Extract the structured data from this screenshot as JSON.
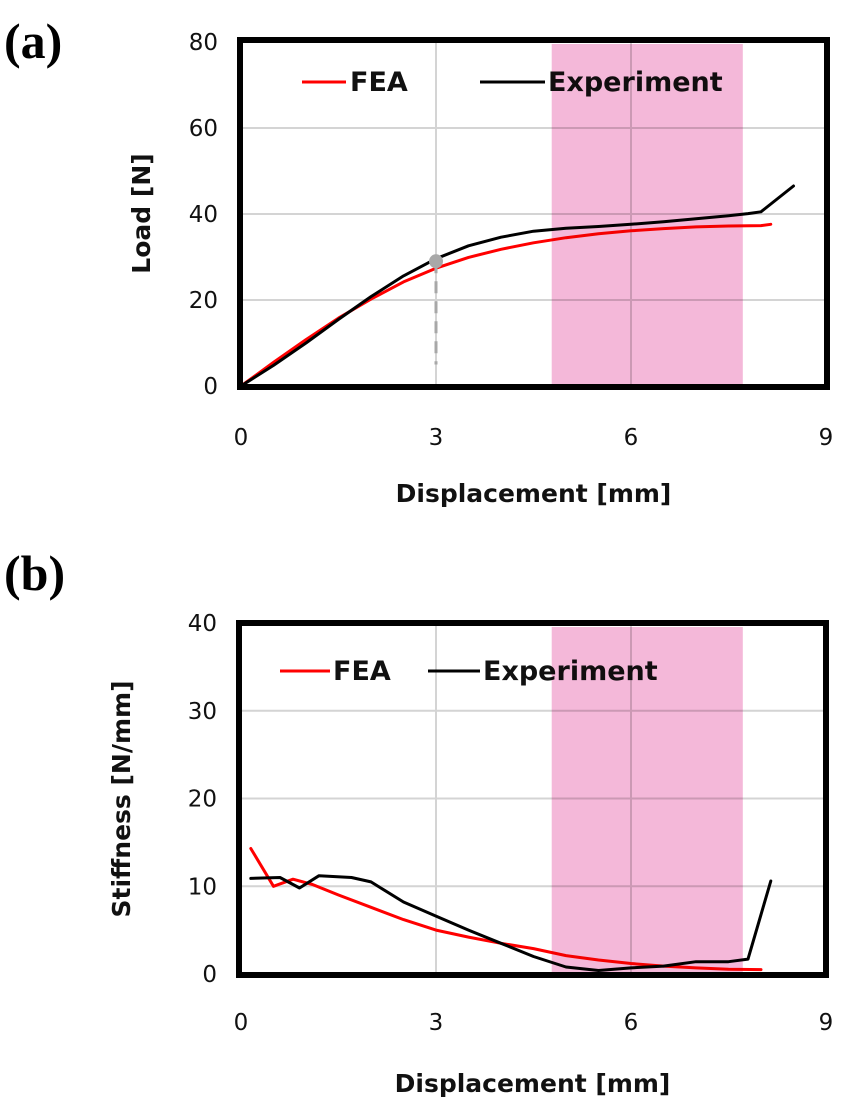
{
  "figure": {
    "colors": {
      "fea": "#ff0000",
      "experiment": "#000000",
      "highlight": "#f0a0cc",
      "grid": "#d4d4d4",
      "marker": "#a8a8a8"
    }
  },
  "chart_data": [
    {
      "panel_label": "(a)",
      "type": "line",
      "title": "",
      "xlabel": "Displacement [mm]",
      "ylabel": "Load [N]",
      "xlim": [
        0,
        9
      ],
      "ylim": [
        0,
        80
      ],
      "xticks": [
        "0",
        "3",
        "6",
        "9"
      ],
      "yticks": [
        "0",
        "20",
        "40",
        "60",
        "80"
      ],
      "xtick_values": [
        0,
        3,
        6,
        9
      ],
      "ytick_values": [
        0,
        20,
        40,
        60,
        80
      ],
      "grid": true,
      "legend": {
        "position": "top",
        "entries": [
          "FEA",
          "Experiment"
        ]
      },
      "highlight_band": {
        "x_start": 4.78,
        "x_end": 7.72
      },
      "annotation": {
        "type": "marker-with-dashed-drop",
        "x": 3.0,
        "y": 29,
        "drop_to_y": 5
      },
      "series": [
        {
          "name": "FEA",
          "x": [
            0,
            0.5,
            1.0,
            1.5,
            2.0,
            2.5,
            3.0,
            3.5,
            4.0,
            4.5,
            5.0,
            5.5,
            6.0,
            6.5,
            7.0,
            7.5,
            8.0,
            8.15
          ],
          "y": [
            0,
            5.5,
            10.8,
            15.8,
            20.2,
            24.2,
            27.4,
            29.9,
            31.8,
            33.3,
            34.5,
            35.4,
            36.1,
            36.6,
            37.0,
            37.2,
            37.3,
            37.6
          ]
        },
        {
          "name": "Experiment",
          "x": [
            0,
            0.5,
            1.0,
            1.5,
            2.0,
            2.5,
            3.0,
            3.5,
            4.0,
            4.5,
            5.0,
            5.5,
            6.0,
            6.5,
            7.0,
            7.5,
            7.8,
            8.0,
            8.5
          ],
          "y": [
            0,
            4.8,
            10.0,
            15.5,
            20.8,
            25.6,
            29.6,
            32.6,
            34.6,
            36.0,
            36.7,
            37.1,
            37.6,
            38.2,
            38.9,
            39.6,
            40.1,
            40.5,
            46.5
          ]
        }
      ]
    },
    {
      "panel_label": "(b)",
      "type": "line",
      "title": "",
      "xlabel": "Displacement [mm]",
      "ylabel": "Stiffness [N/mm]",
      "xlim": [
        0,
        9
      ],
      "ylim": [
        0,
        40
      ],
      "xticks": [
        "0",
        "3",
        "6",
        "9"
      ],
      "yticks": [
        "0",
        "10",
        "20",
        "30",
        "40"
      ],
      "xtick_values": [
        0,
        3,
        6,
        9
      ],
      "ytick_values": [
        0,
        10,
        20,
        30,
        40
      ],
      "grid": true,
      "legend": {
        "position": "top",
        "entries": [
          "FEA",
          "Experiment"
        ]
      },
      "highlight_band": {
        "x_start": 4.78,
        "x_end": 7.72
      },
      "series": [
        {
          "name": "FEA",
          "x": [
            0.15,
            0.5,
            0.8,
            1.1,
            1.5,
            2.0,
            2.5,
            3.0,
            3.5,
            4.0,
            4.5,
            5.0,
            5.5,
            6.0,
            6.5,
            7.0,
            7.5,
            8.0
          ],
          "y": [
            14.3,
            10.0,
            10.8,
            10.2,
            9.0,
            7.6,
            6.2,
            5.0,
            4.2,
            3.5,
            2.9,
            2.1,
            1.6,
            1.2,
            0.9,
            0.7,
            0.55,
            0.5
          ]
        },
        {
          "name": "Experiment",
          "x": [
            0.15,
            0.6,
            0.9,
            1.2,
            1.7,
            2.0,
            2.5,
            3.0,
            3.5,
            4.0,
            4.5,
            5.0,
            5.5,
            6.0,
            6.5,
            7.0,
            7.5,
            7.8,
            8.15
          ],
          "y": [
            10.9,
            11.0,
            9.8,
            11.2,
            11.0,
            10.5,
            8.2,
            6.6,
            5.0,
            3.5,
            2.0,
            0.8,
            0.4,
            0.7,
            0.9,
            1.4,
            1.4,
            1.7,
            10.6
          ]
        }
      ]
    }
  ]
}
